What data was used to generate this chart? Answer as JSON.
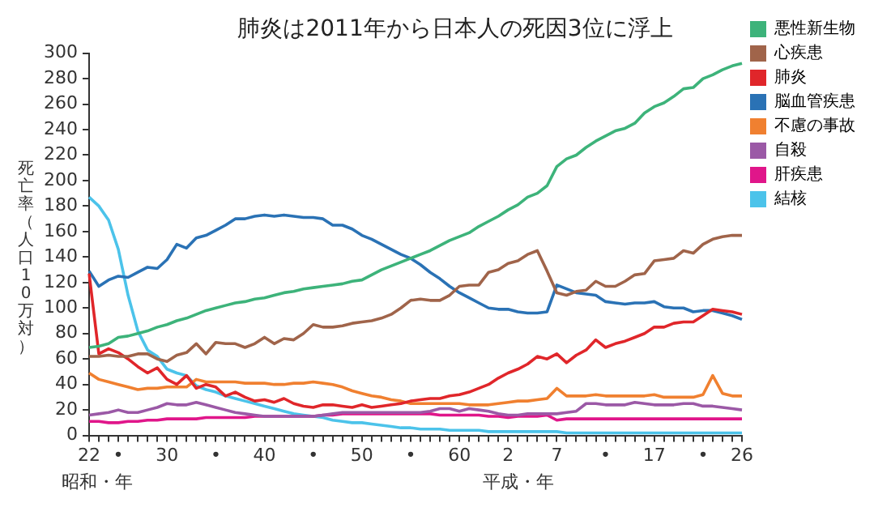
{
  "chart_data": {
    "type": "line",
    "title": "肺炎は2011年から日本人の死因3位に浮上",
    "ylabel": "死亡率（人口10万対）",
    "annotations": [
      "昭和・年",
      "平成・年"
    ],
    "categories": [
      "22",
      null,
      null,
      "•",
      null,
      null,
      null,
      null,
      "30",
      null,
      null,
      null,
      null,
      "•",
      null,
      null,
      null,
      null,
      "40",
      null,
      null,
      null,
      null,
      "•",
      null,
      null,
      null,
      null,
      "50",
      null,
      null,
      null,
      null,
      "•",
      null,
      null,
      null,
      null,
      "60",
      null,
      null,
      null,
      null,
      "2",
      null,
      null,
      null,
      null,
      "7",
      null,
      null,
      null,
      null,
      "•",
      null,
      null,
      null,
      null,
      "17",
      null,
      null,
      null,
      null,
      "•",
      null,
      null,
      null,
      "26"
    ],
    "ylim": [
      0,
      300
    ],
    "yticks": [
      0,
      20,
      40,
      60,
      80,
      100,
      120,
      140,
      160,
      180,
      200,
      220,
      240,
      260,
      280,
      300
    ],
    "grid": false,
    "legend": "top right",
    "marker": "none",
    "line_style": "solid",
    "series": [
      {
        "name": "悪性新生物",
        "color": "#3db37a",
        "values": [
          69,
          70,
          72,
          77,
          78,
          80,
          82,
          85,
          87,
          90,
          92,
          95,
          98,
          100,
          102,
          104,
          105,
          107,
          108,
          110,
          112,
          113,
          115,
          116,
          117,
          118,
          119,
          121,
          122,
          126,
          130,
          133,
          136,
          139,
          142,
          145,
          149,
          153,
          156,
          159,
          164,
          168,
          172,
          177,
          181,
          187,
          190,
          196,
          211,
          217,
          220,
          226,
          231,
          235,
          239,
          241,
          245,
          253,
          258,
          261,
          266,
          272,
          273,
          280,
          283,
          287,
          290,
          292
        ]
      },
      {
        "name": "心疾患",
        "color": "#a0644a",
        "values": [
          62,
          62,
          63,
          62,
          62,
          64,
          64,
          60,
          58,
          63,
          65,
          72,
          64,
          73,
          72,
          72,
          69,
          72,
          77,
          72,
          76,
          75,
          80,
          87,
          85,
          85,
          86,
          88,
          89,
          90,
          92,
          95,
          100,
          106,
          107,
          106,
          106,
          110,
          117,
          118,
          118,
          128,
          130,
          135,
          137,
          142,
          145,
          129,
          112,
          110,
          113,
          114,
          121,
          117,
          117,
          121,
          126,
          127,
          137,
          138,
          139,
          145,
          143,
          150,
          154,
          156,
          157,
          157
        ]
      },
      {
        "name": "肺炎",
        "color": "#e0262a",
        "values": [
          127,
          64,
          68,
          65,
          60,
          54,
          49,
          53,
          44,
          40,
          47,
          37,
          40,
          38,
          31,
          34,
          30,
          27,
          28,
          26,
          29,
          25,
          23,
          22,
          24,
          24,
          23,
          22,
          24,
          22,
          23,
          24,
          25,
          27,
          28,
          29,
          29,
          31,
          32,
          34,
          37,
          40,
          45,
          49,
          52,
          56,
          62,
          60,
          64,
          57,
          63,
          67,
          75,
          69,
          72,
          74,
          77,
          80,
          85,
          85,
          88,
          89,
          89,
          94,
          99,
          98,
          97,
          95
        ]
      },
      {
        "name": "脳血管疾患",
        "color": "#2a72b5",
        "values": [
          129,
          117,
          122,
          125,
          124,
          128,
          132,
          131,
          138,
          150,
          147,
          155,
          157,
          161,
          165,
          170,
          170,
          172,
          173,
          172,
          173,
          172,
          171,
          171,
          170,
          165,
          165,
          162,
          157,
          154,
          150,
          146,
          142,
          139,
          134,
          128,
          123,
          117,
          112,
          108,
          104,
          100,
          99,
          99,
          97,
          96,
          96,
          97,
          118,
          115,
          112,
          111,
          110,
          105,
          104,
          103,
          104,
          104,
          105,
          101,
          100,
          100,
          97,
          98,
          98,
          96,
          94,
          91
        ]
      },
      {
        "name": "不慮の事故",
        "color": "#f08030",
        "values": [
          49,
          44,
          42,
          40,
          38,
          36,
          37,
          37,
          38,
          38,
          38,
          44,
          42,
          42,
          42,
          42,
          41,
          41,
          41,
          40,
          40,
          41,
          41,
          42,
          41,
          40,
          38,
          35,
          33,
          31,
          30,
          28,
          27,
          25,
          25,
          25,
          25,
          25,
          25,
          24,
          24,
          24,
          25,
          26,
          27,
          27,
          28,
          29,
          37,
          31,
          31,
          31,
          32,
          31,
          31,
          31,
          31,
          31,
          32,
          30,
          30,
          30,
          30,
          32,
          47,
          33,
          31,
          31
        ]
      },
      {
        "name": "自殺",
        "color": "#9b59a6",
        "values": [
          16,
          17,
          18,
          20,
          18,
          18,
          20,
          22,
          25,
          24,
          24,
          26,
          24,
          22,
          20,
          18,
          17,
          16,
          15,
          15,
          15,
          15,
          15,
          15,
          16,
          17,
          18,
          18,
          18,
          18,
          18,
          18,
          18,
          18,
          18,
          19,
          21,
          21,
          19,
          21,
          20,
          19,
          17,
          16,
          16,
          17,
          17,
          17,
          17,
          18,
          19,
          25,
          25,
          24,
          24,
          24,
          26,
          25,
          24,
          24,
          24,
          25,
          25,
          23,
          23,
          22,
          21,
          20
        ]
      },
      {
        "name": "肝疾患",
        "color": "#e0168a",
        "values": [
          11,
          11,
          10,
          10,
          11,
          11,
          12,
          12,
          13,
          13,
          13,
          13,
          14,
          14,
          14,
          14,
          14,
          15,
          15,
          15,
          15,
          15,
          15,
          15,
          16,
          16,
          17,
          17,
          17,
          17,
          17,
          17,
          17,
          17,
          17,
          17,
          16,
          16,
          16,
          16,
          16,
          15,
          15,
          14,
          15,
          15,
          15,
          16,
          12,
          13,
          13,
          13,
          13,
          13,
          13,
          13,
          13,
          13,
          13,
          13,
          13,
          13,
          13,
          13,
          13,
          13,
          13,
          13
        ]
      },
      {
        "name": "結核",
        "color": "#4cc3ea",
        "values": [
          187,
          180,
          169,
          146,
          110,
          82,
          67,
          62,
          52,
          49,
          47,
          39,
          36,
          34,
          31,
          29,
          27,
          25,
          23,
          21,
          19,
          17,
          16,
          15,
          14,
          12,
          11,
          10,
          10,
          9,
          8,
          7,
          6,
          6,
          5,
          5,
          5,
          4,
          4,
          4,
          4,
          3,
          3,
          3,
          3,
          3,
          3,
          3,
          3,
          2,
          2,
          2,
          2,
          2,
          2,
          2,
          2,
          2,
          2,
          2,
          2,
          2,
          2,
          2,
          2,
          2,
          2,
          2
        ]
      }
    ]
  }
}
